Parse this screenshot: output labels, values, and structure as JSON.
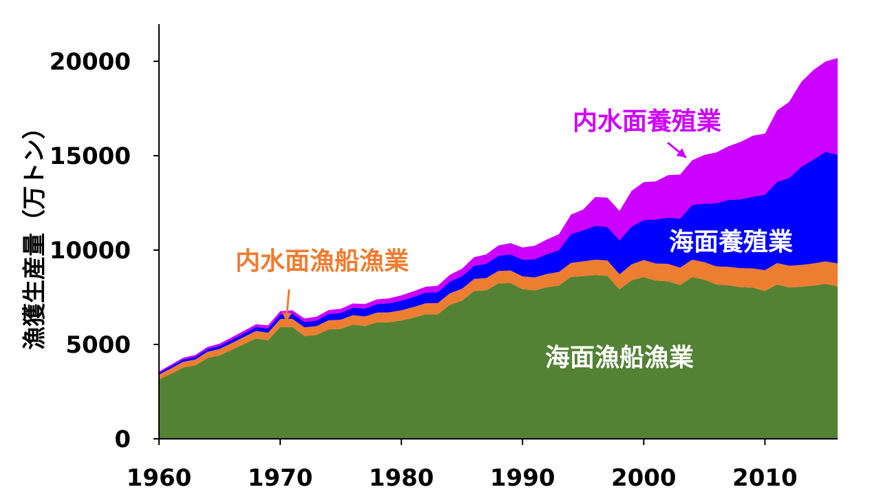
{
  "chart_data": {
    "type": "area",
    "stacked": true,
    "ylabel": "漁獲生産量（万トン）",
    "xlabel": "",
    "xlim": [
      1960,
      2016
    ],
    "ylim": [
      0,
      22000
    ],
    "xticks": [
      1960,
      1970,
      1980,
      1990,
      2000,
      2010
    ],
    "yticks": [
      0,
      5000,
      10000,
      15000,
      20000
    ],
    "grid": false,
    "legend": "none",
    "x": [
      1960,
      1961,
      1962,
      1963,
      1964,
      1965,
      1966,
      1967,
      1968,
      1969,
      1970,
      1971,
      1972,
      1973,
      1974,
      1975,
      1976,
      1977,
      1978,
      1979,
      1980,
      1981,
      1982,
      1983,
      1984,
      1985,
      1986,
      1987,
      1988,
      1989,
      1990,
      1991,
      1992,
      1993,
      1994,
      1995,
      1996,
      1997,
      1998,
      1999,
      2000,
      2001,
      2002,
      2003,
      2004,
      2005,
      2006,
      2007,
      2008,
      2009,
      2010,
      2011,
      2012,
      2013,
      2014,
      2015,
      2016
    ],
    "series": [
      {
        "name": "海面漁船漁業",
        "color": "#548235",
        "values": [
          3150,
          3450,
          3780,
          3890,
          4280,
          4420,
          4720,
          5020,
          5320,
          5220,
          5920,
          5920,
          5450,
          5500,
          5800,
          5820,
          6050,
          5970,
          6170,
          6170,
          6270,
          6420,
          6600,
          6600,
          7100,
          7320,
          7830,
          7870,
          8230,
          8250,
          7930,
          7860,
          8030,
          8120,
          8580,
          8620,
          8670,
          8630,
          7920,
          8400,
          8570,
          8380,
          8350,
          8150,
          8570,
          8430,
          8180,
          8130,
          8040,
          8010,
          7830,
          8180,
          8020,
          8060,
          8120,
          8210,
          8070
        ]
      },
      {
        "name": "内水面漁船漁業",
        "color": "#ed7d31",
        "values": [
          250,
          280,
          300,
          310,
          330,
          340,
          350,
          370,
          390,
          400,
          420,
          440,
          460,
          470,
          480,
          490,
          500,
          510,
          520,
          530,
          540,
          560,
          580,
          590,
          610,
          630,
          640,
          650,
          660,
          670,
          680,
          690,
          700,
          720,
          740,
          780,
          820,
          820,
          800,
          840,
          900,
          910,
          920,
          920,
          920,
          930,
          950,
          980,
          1000,
          1020,
          1100,
          1130,
          1150,
          1150,
          1170,
          1190,
          1220
        ]
      },
      {
        "name": "海面養殖業",
        "color": "#0000ff",
        "values": [
          100,
          120,
          130,
          140,
          150,
          160,
          180,
          190,
          210,
          230,
          250,
          270,
          280,
          300,
          330,
          360,
          390,
          420,
          450,
          480,
          510,
          540,
          560,
          580,
          620,
          660,
          700,
          750,
          800,
          850,
          880,
          960,
          1050,
          1150,
          1530,
          1650,
          1800,
          1770,
          1800,
          2000,
          2120,
          2330,
          2450,
          2600,
          2900,
          3100,
          3350,
          3550,
          3650,
          3800,
          4000,
          4300,
          4650,
          5200,
          5500,
          5800,
          5760
        ]
      },
      {
        "name": "内水面養殖業",
        "color": "#cc00ff",
        "values": [
          70,
          80,
          90,
          100,
          110,
          120,
          130,
          140,
          150,
          160,
          170,
          180,
          190,
          200,
          210,
          220,
          230,
          240,
          250,
          260,
          280,
          300,
          320,
          340,
          360,
          400,
          450,
          500,
          550,
          600,
          650,
          720,
          780,
          850,
          1030,
          1100,
          1520,
          1560,
          1550,
          1900,
          2010,
          2020,
          2250,
          2330,
          2370,
          2580,
          2690,
          2840,
          3040,
          3230,
          3240,
          3790,
          4030,
          4500,
          4750,
          4790,
          5120
        ]
      }
    ],
    "annotations": [
      {
        "text": "内水面養殖業",
        "series": "内水面養殖業",
        "color": "#cc00ff",
        "arrow_to": [
          2003.5,
          14900
        ]
      },
      {
        "text": "海面養殖業",
        "series": "海面養殖業",
        "color": "#ffffff"
      },
      {
        "text": "内水面漁船漁業",
        "series": "内水面漁船漁業",
        "color": "#ed7d31",
        "arrow_to": [
          1970.5,
          6200
        ]
      },
      {
        "text": "海面漁船漁業",
        "series": "海面漁船漁業",
        "color": "#ffffff"
      }
    ]
  }
}
